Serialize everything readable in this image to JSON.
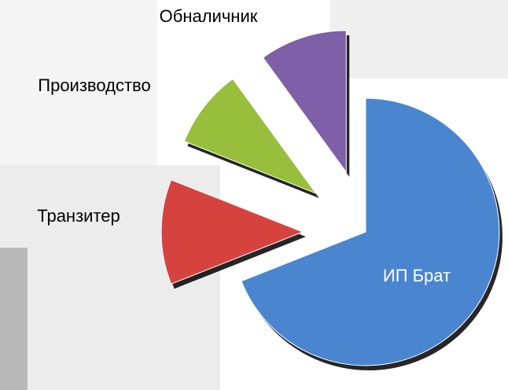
{
  "chart_data": {
    "type": "pie",
    "categories": [
      "ИП Брат",
      "Транзитер",
      "Производство",
      "Обналичник"
    ],
    "values": [
      69,
      12,
      9,
      10
    ],
    "colors": [
      "#4a86d0",
      "#d6433f",
      "#98bf3c",
      "#7e5fa8"
    ]
  }
}
